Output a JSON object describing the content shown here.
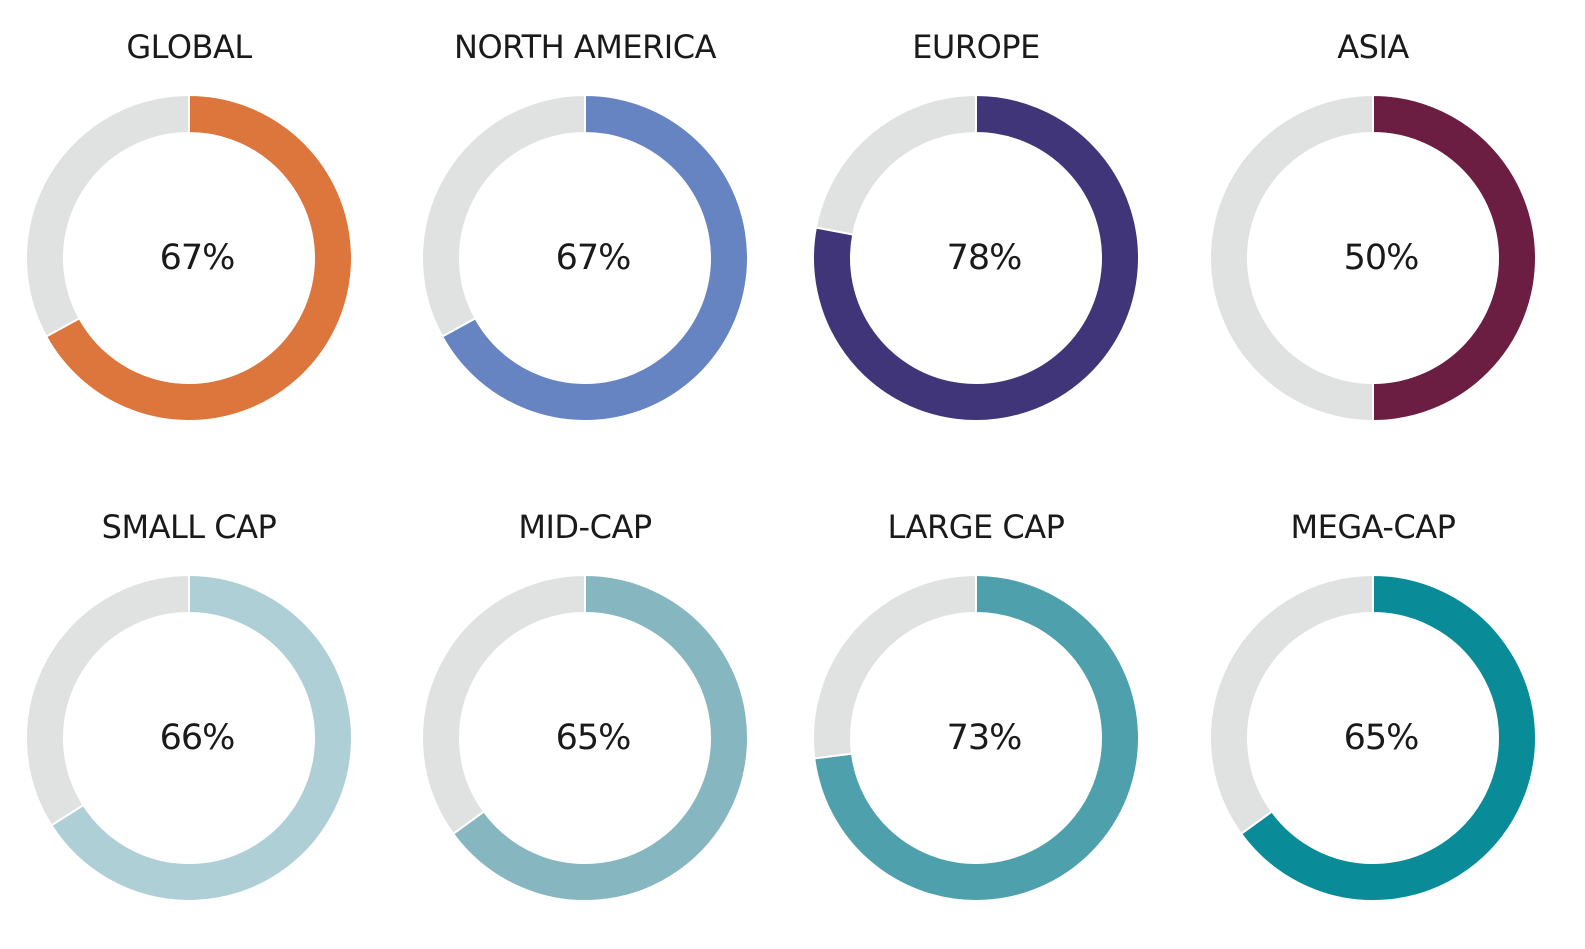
{
  "chart_data": [
    {
      "type": "pie",
      "title": "GLOBAL",
      "value": 67,
      "label": "67%",
      "color": "#DC763D",
      "remainder_color": "#E0E2E2"
    },
    {
      "type": "pie",
      "title": "NORTH AMERICA",
      "value": 67,
      "label": "67%",
      "color": "#6784C2",
      "remainder_color": "#E0E2E2"
    },
    {
      "type": "pie",
      "title": "EUROPE",
      "value": 78,
      "label": "78%",
      "color": "#413579",
      "remainder_color": "#E0E2E2"
    },
    {
      "type": "pie",
      "title": "ASIA",
      "value": 50,
      "label": "50%",
      "color": "#6C1D42",
      "remainder_color": "#E0E2E2"
    },
    {
      "type": "pie",
      "title": "SMALL CAP",
      "value": 66,
      "label": "66%",
      "color": "#AFCFD6",
      "remainder_color": "#E0E2E2"
    },
    {
      "type": "pie",
      "title": "MID-CAP",
      "value": 65,
      "label": "65%",
      "color": "#86B7C0",
      "remainder_color": "#E0E2E2"
    },
    {
      "type": "pie",
      "title": "LARGE CAP",
      "value": 73,
      "label": "73%",
      "color": "#4EA1AC",
      "remainder_color": "#E0E2E2"
    },
    {
      "type": "pie",
      "title": "MEGA-CAP",
      "value": 65,
      "label": "65%",
      "color": "#0A8B98",
      "remainder_color": "#E0E2E2"
    }
  ]
}
